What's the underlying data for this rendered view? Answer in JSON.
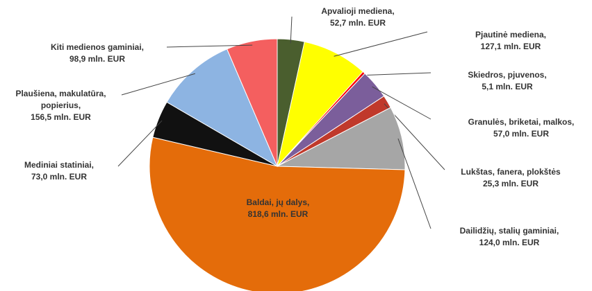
{
  "chart_data": {
    "type": "pie",
    "categories": [
      "Apvalioji mediena,",
      "Pjautinė mediena,",
      "Skiedros, pjuvenos,",
      "Granulės, briketai, malkos,",
      "Lukštas, fanera, plokštės",
      "Dailidžių, stalių gaminiai,",
      "Baldai, jų dalys,",
      "Mediniai statiniai,",
      "Plaušiena, makulatūra, popierius,",
      "Kiti medienos gaminiai,"
    ],
    "values": [
      52.7,
      127.1,
      5.1,
      57.0,
      25.3,
      124.0,
      818.6,
      73.0,
      156.5,
      98.9
    ],
    "value_labels": [
      "52,7 mln. EUR",
      "127,1 mln. EUR",
      "5,1 mln. EUR",
      "57,0 mln. EUR",
      "25,3 mln. EUR",
      "124,0 mln. EUR",
      "818,6 mln. EUR",
      "73,0 mln. EUR",
      "156,5 mln. EUR",
      "98,9 mln. EUR"
    ],
    "colors": [
      "#4a5e2e",
      "#ffff00",
      "#ff0000",
      "#7b5e9b",
      "#c0392b",
      "#a6a6a6",
      "#e46c0a",
      "#111111",
      "#8db4e2",
      "#f45f5f"
    ]
  }
}
